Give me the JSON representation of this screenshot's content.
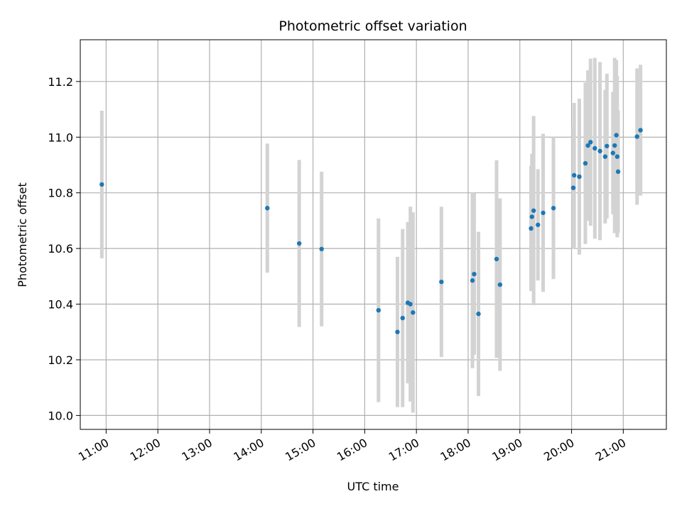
{
  "chart_data": {
    "type": "scatter",
    "title": "Photometric offset variation",
    "xlabel": "UTC time",
    "ylabel": "Photometric offset",
    "x_ticks": [
      "11:00",
      "12:00",
      "13:00",
      "14:00",
      "15:00",
      "16:00",
      "17:00",
      "18:00",
      "19:00",
      "20:00",
      "21:00"
    ],
    "y_ticks": [
      "10.0",
      "10.2",
      "10.4",
      "10.6",
      "10.8",
      "11.0",
      "11.2"
    ],
    "xlim": [
      "10:30",
      "21:50"
    ],
    "ylim": [
      9.95,
      11.35
    ],
    "grid": true,
    "colors": {
      "points": "#1f77b4",
      "error_bars": "#d3d3d3",
      "grid": "#b0b0b0"
    },
    "points": [
      {
        "x": "10:55",
        "y": 10.83,
        "err": 0.265
      },
      {
        "x": "14:07",
        "y": 10.745,
        "err": 0.232
      },
      {
        "x": "14:44",
        "y": 10.618,
        "err": 0.3
      },
      {
        "x": "15:10",
        "y": 10.598,
        "err": 0.278
      },
      {
        "x": "16:16",
        "y": 10.378,
        "err": 0.33
      },
      {
        "x": "16:38",
        "y": 10.3,
        "err": 0.27
      },
      {
        "x": "16:44",
        "y": 10.35,
        "err": 0.32
      },
      {
        "x": "16:50",
        "y": 10.405,
        "err": 0.29
      },
      {
        "x": "16:53",
        "y": 10.4,
        "err": 0.35
      },
      {
        "x": "16:56",
        "y": 10.37,
        "err": 0.36
      },
      {
        "x": "17:29",
        "y": 10.48,
        "err": 0.27
      },
      {
        "x": "18:05",
        "y": 10.485,
        "err": 0.315
      },
      {
        "x": "18:07",
        "y": 10.508,
        "err": 0.29
      },
      {
        "x": "18:12",
        "y": 10.365,
        "err": 0.295
      },
      {
        "x": "18:33",
        "y": 10.562,
        "err": 0.355
      },
      {
        "x": "18:37",
        "y": 10.47,
        "err": 0.31
      },
      {
        "x": "19:13",
        "y": 10.672,
        "err": 0.225
      },
      {
        "x": "19:14",
        "y": 10.714,
        "err": 0.226
      },
      {
        "x": "19:16",
        "y": 10.736,
        "err": 0.34
      },
      {
        "x": "19:21",
        "y": 10.685,
        "err": 0.2
      },
      {
        "x": "19:27",
        "y": 10.728,
        "err": 0.284
      },
      {
        "x": "19:39",
        "y": 10.745,
        "err": 0.255
      },
      {
        "x": "20:02",
        "y": 10.818,
        "err": 0.22
      },
      {
        "x": "20:03",
        "y": 10.863,
        "err": 0.26
      },
      {
        "x": "20:09",
        "y": 10.858,
        "err": 0.28
      },
      {
        "x": "20:16",
        "y": 10.906,
        "err": 0.29
      },
      {
        "x": "20:19",
        "y": 10.97,
        "err": 0.27
      },
      {
        "x": "20:22",
        "y": 10.982,
        "err": 0.3
      },
      {
        "x": "20:27",
        "y": 10.96,
        "err": 0.325
      },
      {
        "x": "20:33",
        "y": 10.95,
        "err": 0.32
      },
      {
        "x": "20:39",
        "y": 10.93,
        "err": 0.24
      },
      {
        "x": "20:41",
        "y": 10.968,
        "err": 0.26
      },
      {
        "x": "20:48",
        "y": 10.943,
        "err": 0.22
      },
      {
        "x": "20:50",
        "y": 10.97,
        "err": 0.315
      },
      {
        "x": "20:52",
        "y": 11.007,
        "err": 0.27
      },
      {
        "x": "20:53",
        "y": 10.93,
        "err": 0.29
      },
      {
        "x": "20:54",
        "y": 10.876,
        "err": 0.22
      },
      {
        "x": "21:16",
        "y": 11.002,
        "err": 0.245
      },
      {
        "x": "21:20",
        "y": 11.025,
        "err": 0.235
      }
    ]
  }
}
